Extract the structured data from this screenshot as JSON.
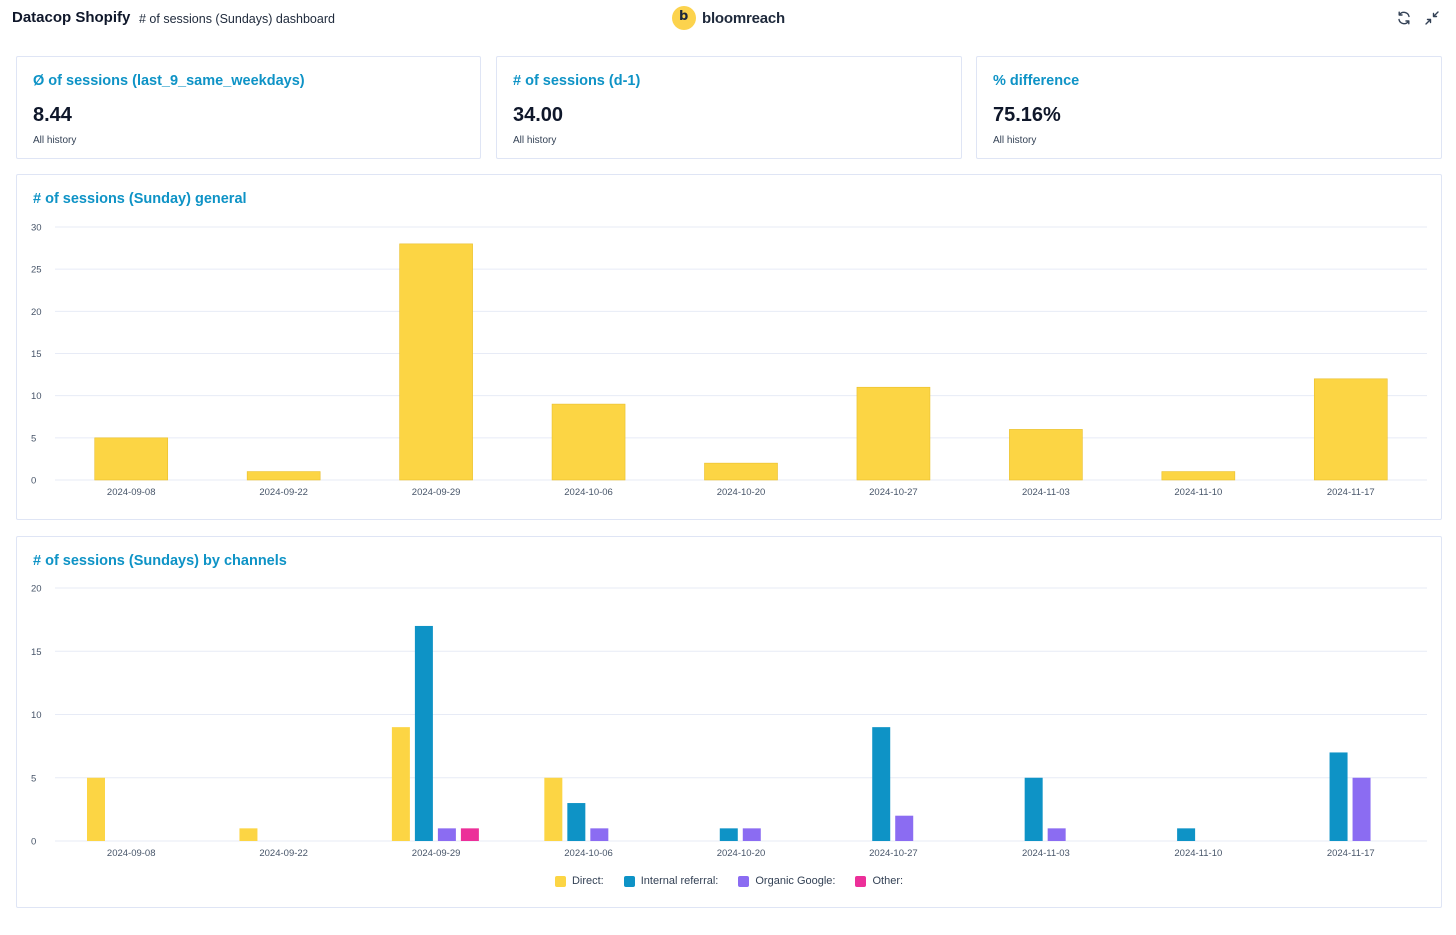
{
  "header": {
    "title": "Datacop Shopify",
    "subtitle": "# of sessions (Sundays) dashboard",
    "logo_text": "bloomreach",
    "refresh_icon": "refresh-icon",
    "collapse_icon": "collapse-icon"
  },
  "kpis": [
    {
      "title": "Ø of sessions (last_9_same_weekdays)",
      "value": "8.44",
      "sub": "All history"
    },
    {
      "title": "# of sessions (d-1)",
      "value": "34.00",
      "sub": "All history"
    },
    {
      "title": "% difference",
      "value": "75.16%",
      "sub": "All history"
    }
  ],
  "colors": {
    "accent": "#0e93c6",
    "direct": "#fcd544",
    "internal_referral": "#0e93c6",
    "organic_google": "#8b6cf2",
    "other": "#ec2f99"
  },
  "charts": {
    "general_title": "# of sessions (Sunday) general",
    "channels_title": "# of sessions (Sundays) by channels"
  },
  "chart_data": [
    {
      "type": "bar",
      "title": "# of sessions (Sunday) general",
      "categories": [
        "2024-09-08",
        "2024-09-22",
        "2024-09-29",
        "2024-10-06",
        "2024-10-20",
        "2024-10-27",
        "2024-11-03",
        "2024-11-10",
        "2024-11-17"
      ],
      "series": [
        {
          "values": [
            5,
            1,
            28,
            9,
            2,
            11,
            6,
            1,
            12
          ]
        }
      ],
      "ylim": [
        0,
        30
      ],
      "yticks": [
        0,
        5,
        10,
        15,
        20,
        25,
        30
      ],
      "grid": true
    },
    {
      "type": "bar",
      "title": "# of sessions (Sundays) by channels",
      "categories": [
        "2024-09-08",
        "2024-09-22",
        "2024-09-29",
        "2024-10-06",
        "2024-10-20",
        "2024-10-27",
        "2024-11-03",
        "2024-11-10",
        "2024-11-17"
      ],
      "series": [
        {
          "name": "Direct:",
          "values": [
            5,
            1,
            9,
            5,
            0,
            0,
            0,
            0,
            0
          ]
        },
        {
          "name": "Internal referral:",
          "values": [
            0,
            0,
            17,
            3,
            1,
            9,
            5,
            1,
            7
          ]
        },
        {
          "name": "Organic Google:",
          "values": [
            0,
            0,
            1,
            1,
            1,
            2,
            1,
            0,
            5
          ]
        },
        {
          "name": "Other:",
          "values": [
            0,
            0,
            1,
            0,
            0,
            0,
            0,
            0,
            0
          ]
        }
      ],
      "ylim": [
        0,
        20
      ],
      "yticks": [
        0,
        5,
        10,
        15,
        20
      ],
      "grid": true,
      "legend": "bottom-center"
    }
  ]
}
